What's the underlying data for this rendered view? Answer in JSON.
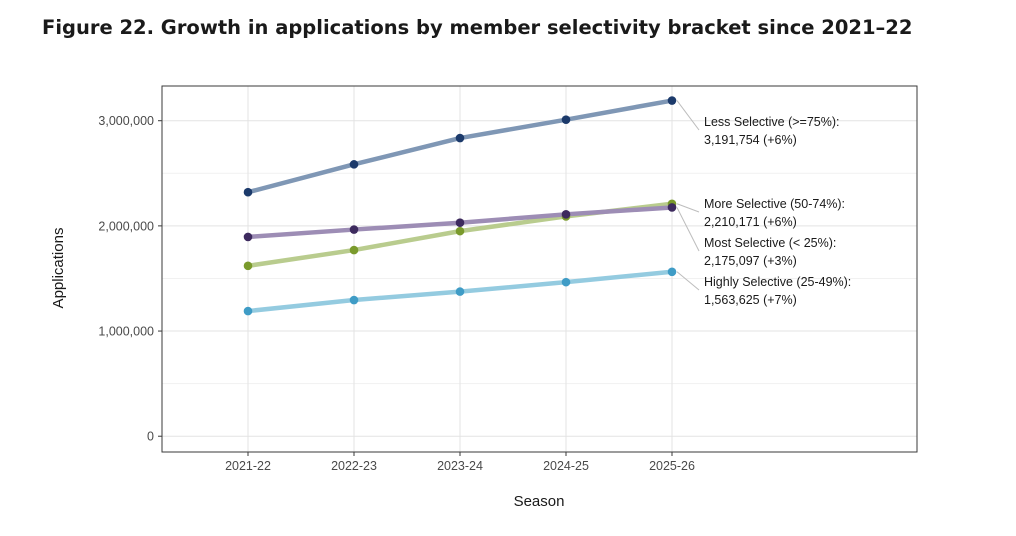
{
  "figure_title": "Figure 22. Growth in applications by member selectivity bracket since 2021–22",
  "chart_data": {
    "type": "line",
    "title": "Figure 22. Growth in applications by member selectivity bracket since 2021–22",
    "xlabel": "Season",
    "ylabel": "Applications",
    "categories": [
      "2021-22",
      "2022-23",
      "2023-24",
      "2024-25",
      "2025-26"
    ],
    "ylim": [
      -150000,
      3330000
    ],
    "yticks": [
      0,
      1000000,
      2000000,
      3000000
    ],
    "ytick_labels": [
      "0",
      "1,000,000",
      "2,000,000",
      "3,000,000"
    ],
    "grid": true,
    "series": [
      {
        "name": "Less Selective (>=75%)",
        "values": [
          2320000,
          2585000,
          2835000,
          3010000,
          3191754
        ],
        "line_color": "#7f97b5",
        "point_color": "#1c3a6b",
        "label_line1": "Less Selective (>=75%):",
        "label_line2": "3,191,754 (+6%)"
      },
      {
        "name": "More Selective (50-74%)",
        "values": [
          1620000,
          1770000,
          1950000,
          2090000,
          2210171
        ],
        "line_color": "#b9cc8e",
        "point_color": "#7a9a2c",
        "label_line1": "More Selective (50-74%):",
        "label_line2": "2,210,171 (+6%)"
      },
      {
        "name": "Most Selective (< 25%)",
        "values": [
          1895000,
          1965000,
          2030000,
          2110000,
          2175097
        ],
        "line_color": "#9d8db5",
        "point_color": "#3d2a5e",
        "label_line1": "Most Selective (< 25%):",
        "label_line2": "2,175,097 (+3%)"
      },
      {
        "name": "Highly Selective (25-49%)",
        "values": [
          1190000,
          1295000,
          1375000,
          1465000,
          1563625
        ],
        "line_color": "#94cbe0",
        "point_color": "#3f9cc6",
        "label_line1": "Highly Selective (25-49%):",
        "label_line2": "1,563,625 (+7%)"
      }
    ]
  }
}
